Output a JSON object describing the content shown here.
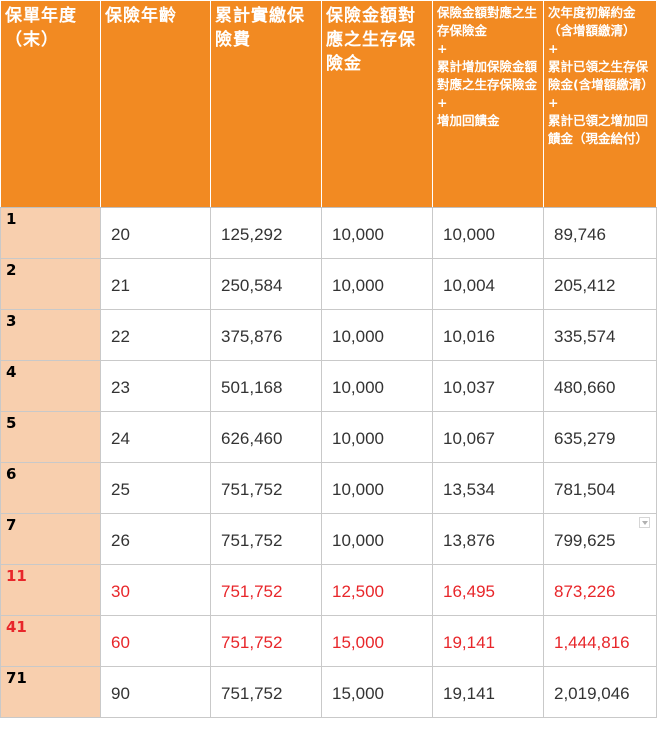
{
  "headers": [
    {
      "text": "保單年度（末）"
    },
    {
      "text": "保險年齡"
    },
    {
      "text": "累計實繳保險費"
    },
    {
      "text": "保險金額對應之生存保險金"
    },
    {
      "segments": [
        "保險金額對應之生存保險金",
        "+",
        "累計增加保險金額對應之生存保險金",
        "+",
        "增加回饋金"
      ]
    },
    {
      "segments": [
        "次年度初解約金（含增額繳清）",
        "+",
        "累計已領之生存保險金(含增額繳清）",
        "+",
        "累計已領之增加回饋金（現金給付）"
      ]
    }
  ],
  "rows": [
    {
      "year": "1",
      "age": "20",
      "premium": "125,292",
      "survival": "10,000",
      "combined": "10,000",
      "surrender": "89,746",
      "highlight": false
    },
    {
      "year": "2",
      "age": "21",
      "premium": "250,584",
      "survival": "10,000",
      "combined": "10,004",
      "surrender": "205,412",
      "highlight": false
    },
    {
      "year": "3",
      "age": "22",
      "premium": "375,876",
      "survival": "10,000",
      "combined": "10,016",
      "surrender": "335,574",
      "highlight": false
    },
    {
      "year": "4",
      "age": "23",
      "premium": "501,168",
      "survival": "10,000",
      "combined": "10,037",
      "surrender": "480,660",
      "highlight": false
    },
    {
      "year": "5",
      "age": "24",
      "premium": "626,460",
      "survival": "10,000",
      "combined": "10,067",
      "surrender": "635,279",
      "highlight": false
    },
    {
      "year": "6",
      "age": "25",
      "premium": "751,752",
      "survival": "10,000",
      "combined": "13,534",
      "surrender": "781,504",
      "highlight": false
    },
    {
      "year": "7",
      "age": "26",
      "premium": "751,752",
      "survival": "10,000",
      "combined": "13,876",
      "surrender": "799,625",
      "highlight": false,
      "has_dropdown": true
    },
    {
      "year": "11",
      "age": "30",
      "premium": "751,752",
      "survival": "12,500",
      "combined": "16,495",
      "surrender": "873,226",
      "highlight": true
    },
    {
      "year": "41",
      "age": "60",
      "premium": "751,752",
      "survival": "15,000",
      "combined": "19,141",
      "surrender": "1,444,816",
      "highlight": true
    },
    {
      "year": "71",
      "age": "90",
      "premium": "751,752",
      "survival": "15,000",
      "combined": "19,141",
      "surrender": "2,019,046",
      "highlight": false
    }
  ],
  "colors": {
    "header_bg": "#f28a22",
    "year_cell_bg": "#f8cfae",
    "highlight_text": "#e8262a",
    "body_text": "#333333"
  }
}
